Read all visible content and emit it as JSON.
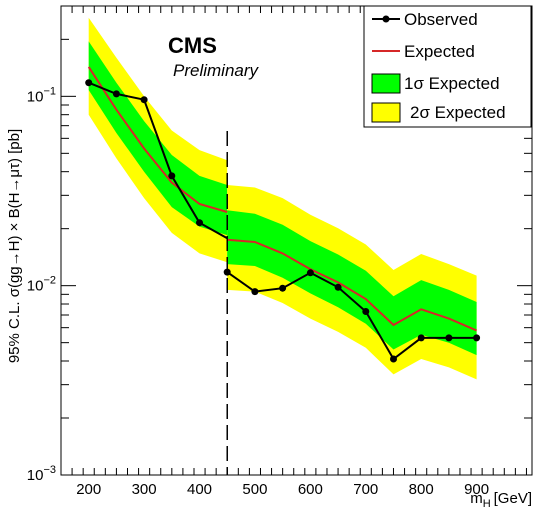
{
  "chart_data": {
    "type": "line",
    "title": "CMS",
    "subtitle": "Preliminary",
    "xlabel": "m",
    "xlabel_sub": "H",
    "xlabel_unit": "[GeV]",
    "ylabel": "95% C.L. σ(gg→H) × B(H→μτ) [pb]",
    "xlim": [
      150,
      1000
    ],
    "ylim": [
      0.001,
      0.3
    ],
    "yscale": "log",
    "x_ticks": [
      200,
      300,
      400,
      500,
      600,
      700,
      800,
      900
    ],
    "x_tick_labels": [
      "200",
      "300",
      "400",
      "500",
      "600",
      "700",
      "800",
      "900"
    ],
    "y_ticks": [
      0.001,
      0.01,
      0.1
    ],
    "y_tick_labels": [
      {
        "base": "10",
        "exp": "−3"
      },
      {
        "base": "10",
        "exp": "−2"
      },
      {
        "base": "10",
        "exp": "−1"
      }
    ],
    "divider_x": 450,
    "legend_position": "top-right",
    "colors": {
      "observed": "#000000",
      "expected": "#d62728",
      "band1": "#00ff00",
      "band2": "#ffff00"
    },
    "segments": [
      {
        "x": [
          200,
          250,
          300,
          350,
          400,
          450
        ],
        "observed": [
          0.118,
          0.103,
          0.096,
          0.038,
          0.0215,
          0.0178
        ],
        "expected": [
          0.143,
          0.085,
          0.053,
          0.035,
          0.027,
          0.0245
        ],
        "band1_low": [
          0.108,
          0.064,
          0.04,
          0.026,
          0.0205,
          0.0185
        ],
        "band1_high": [
          0.195,
          0.118,
          0.074,
          0.049,
          0.038,
          0.034
        ],
        "band2_low": [
          0.08,
          0.047,
          0.029,
          0.019,
          0.0148,
          0.0133
        ],
        "band2_high": [
          0.26,
          0.16,
          0.1,
          0.066,
          0.052,
          0.046
        ]
      },
      {
        "x": [
          450,
          500,
          550,
          600,
          650,
          700,
          750,
          800,
          850,
          900
        ],
        "observed": [
          0.0118,
          0.0093,
          0.0097,
          0.0117,
          0.0098,
          0.0073,
          0.0041,
          0.0053,
          0.0053,
          0.0053
        ],
        "expected": [
          0.0175,
          0.017,
          0.0148,
          0.0122,
          0.0104,
          0.0085,
          0.0062,
          0.0075,
          0.0067,
          0.0058
        ],
        "band1_low": [
          0.013,
          0.0127,
          0.011,
          0.0091,
          0.0077,
          0.0063,
          0.0046,
          0.0055,
          0.005,
          0.0043
        ],
        "band1_high": [
          0.025,
          0.024,
          0.021,
          0.0172,
          0.0146,
          0.012,
          0.0088,
          0.0107,
          0.0095,
          0.0082
        ],
        "band2_low": [
          0.0095,
          0.0093,
          0.0081,
          0.0067,
          0.0057,
          0.0047,
          0.0034,
          0.0041,
          0.0037,
          0.0032
        ],
        "band2_high": [
          0.034,
          0.033,
          0.029,
          0.0237,
          0.0201,
          0.0165,
          0.0121,
          0.0147,
          0.013,
          0.0113
        ]
      }
    ],
    "series": [
      {
        "name": "Observed",
        "key": "observed"
      },
      {
        "name": "Expected",
        "key": "expected"
      },
      {
        "name": "1σ Expected",
        "key": "band1"
      },
      {
        "name": "2σ Expected",
        "key": "band2"
      }
    ]
  }
}
